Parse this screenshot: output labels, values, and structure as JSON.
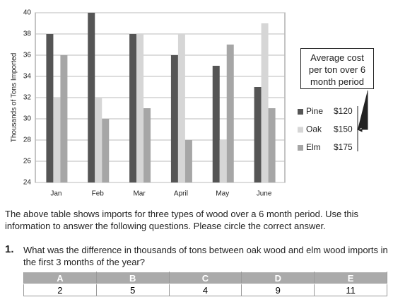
{
  "chart_data": {
    "type": "bar",
    "y_label": "Thousands of Tons Imported",
    "categories": [
      "Jan",
      "Feb",
      "Mar",
      "April",
      "May",
      "June"
    ],
    "series": [
      {
        "name": "Pine",
        "price": "$120",
        "color": "#555555",
        "values": [
          38,
          40,
          38,
          36,
          35,
          33
        ]
      },
      {
        "name": "Oak",
        "price": "$150",
        "color": "#d6d6d6",
        "values": [
          32,
          32,
          38,
          38,
          28,
          39
        ]
      },
      {
        "name": "Elm",
        "price": "$175",
        "color": "#a6a6a6",
        "values": [
          36,
          30,
          31,
          28,
          37,
          31
        ]
      }
    ],
    "ylim": [
      24,
      40
    ],
    "yticks": [
      24,
      26,
      28,
      30,
      32,
      34,
      36,
      38,
      40
    ],
    "grid": true,
    "callout": "Average cost per ton over 6 month period"
  },
  "paragraph": "The above table shows imports for three types of wood over a 6 month period. Use this information to answer the following questions. Please circle the correct answer.",
  "question": {
    "number": "1.",
    "text": "What was the difference in thousands of tons between oak wood and elm wood imports in the first 3 months of the year?",
    "options": [
      {
        "letter": "A",
        "value": 2
      },
      {
        "letter": "B",
        "value": 5
      },
      {
        "letter": "C",
        "value": 4
      },
      {
        "letter": "D",
        "value": 9
      },
      {
        "letter": "E",
        "value": 11
      }
    ]
  }
}
